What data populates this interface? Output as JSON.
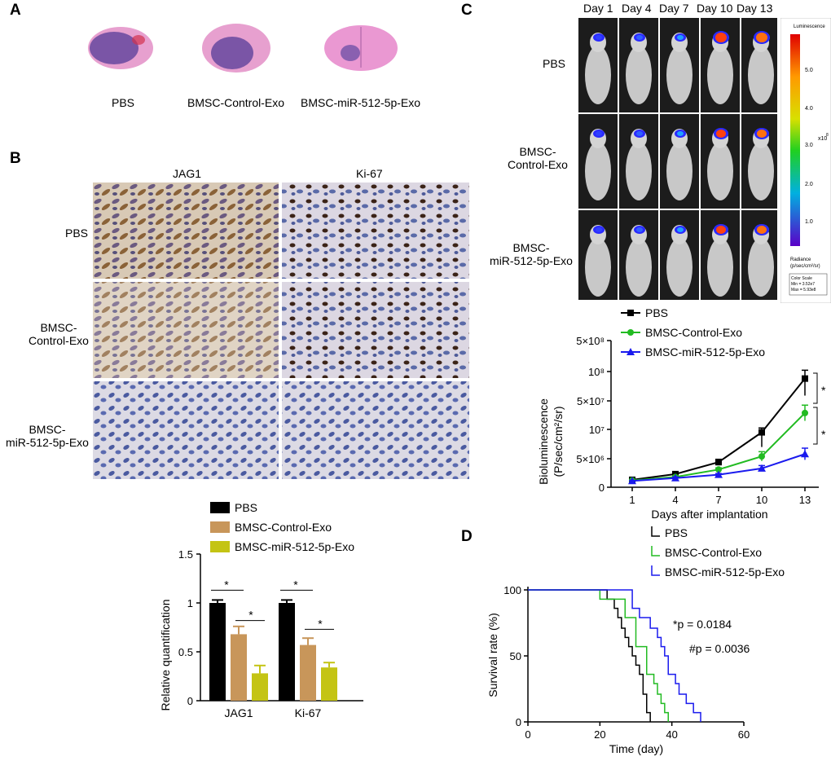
{
  "panelA": {
    "letter": "A",
    "labels": [
      "PBS",
      "BMSC-Control-Exo",
      "BMSC-miR-512-5p-Exo"
    ]
  },
  "panelB": {
    "letter": "B",
    "columns": [
      "JAG1",
      "Ki-67"
    ],
    "rows": [
      "PBS",
      "BMSC-\nControl-Exo",
      "BMSC-\nmiR-512-5p-Exo"
    ],
    "legend": [
      "PBS",
      "BMSC-Control-Exo",
      "BMSC-miR-512-5p-Exo"
    ],
    "ylabel": "Relative quantification",
    "yticks": [
      "0",
      "0.5",
      "1",
      "1.5"
    ],
    "categories": [
      "JAG1",
      "Ki-67"
    ],
    "star": "*"
  },
  "panelC": {
    "letter": "C",
    "days": [
      "Day 1",
      "Day 4",
      "Day 7",
      "Day 10",
      "Day 13"
    ],
    "rows": [
      "PBS",
      "BMSC-\nControl-Exo",
      "BMSC-\nmiR-512-5p-Exo"
    ],
    "scale": {
      "title": "Luminescence",
      "ticks": [
        "5.0",
        "4.0",
        "3.0",
        "2.0",
        "1.0"
      ],
      "exp": "x10",
      "exp_sup": "8",
      "unit1": "Radiance",
      "unit2": "(p/sec/cm²/sr)",
      "box1": "Color Scale",
      "box2": "Min = 3.52e7",
      "box3": "Max = 5.93e8"
    },
    "legend": [
      "PBS",
      "BMSC-Control-Exo",
      "BMSC-miR-512-5p-Exo"
    ],
    "ylabel1": "Bioluminescence",
    "ylabel2": "(P/sec/cm²/sr)",
    "xlabel": "Days after implantation",
    "xticks": [
      "1",
      "4",
      "7",
      "10",
      "13"
    ],
    "yticks": [
      "0",
      "5×10⁶",
      "10⁷",
      "5×10⁷",
      "10⁸",
      "5×10⁸"
    ],
    "star": "*"
  },
  "panelD": {
    "letter": "D",
    "legend": [
      "PBS",
      "BMSC-Control-Exo",
      "BMSC-miR-512-5p-Exo"
    ],
    "ylabel": "Survival rate (%)",
    "xlabel": "Time (day)",
    "xticks": [
      "0",
      "20",
      "40",
      "60"
    ],
    "yticks": [
      "0",
      "50",
      "100"
    ],
    "p1": "*p = 0.0184",
    "p2": "#p = 0.0036"
  },
  "chart_data": [
    {
      "type": "bar",
      "title": "",
      "categories": [
        "JAG1",
        "Ki-67"
      ],
      "ylabel": "Relative quantification",
      "ylim": [
        0,
        1.5
      ],
      "series": [
        {
          "name": "PBS",
          "values": [
            1.0,
            1.0
          ],
          "errors": [
            0.03,
            0.03
          ],
          "color": "#000000"
        },
        {
          "name": "BMSC-Control-Exo",
          "values": [
            0.68,
            0.57
          ],
          "errors": [
            0.08,
            0.07
          ],
          "color": "#c8965a"
        },
        {
          "name": "BMSC-miR-512-5p-Exo",
          "values": [
            0.28,
            0.34
          ],
          "errors": [
            0.08,
            0.05
          ],
          "color": "#c4c414"
        }
      ]
    },
    {
      "type": "line",
      "title": "",
      "xlabel": "Days after implantation",
      "ylabel": "Bioluminescence (P/sec/cm²/sr)",
      "x": [
        1,
        4,
        7,
        10,
        13
      ],
      "series": [
        {
          "name": "PBS",
          "values": [
            1300000.0,
            2300000.0,
            4400000.0,
            9500000.0,
            88000000.0
          ],
          "color": "#000000",
          "marker": "square"
        },
        {
          "name": "BMSC-Control-Exo",
          "values": [
            1200000.0,
            1800000.0,
            3100000.0,
            5400000.0,
            33000000.0
          ],
          "color": "#22bb22",
          "marker": "circle"
        },
        {
          "name": "BMSC-miR-512-5p-Exo",
          "values": [
            1100000.0,
            1600000.0,
            2200000.0,
            3300000.0,
            5800000.0
          ],
          "color": "#1a1aee",
          "marker": "triangle"
        }
      ]
    },
    {
      "type": "line",
      "title": "",
      "xlabel": "Time (day)",
      "ylabel": "Survival rate (%)",
      "xlim": [
        0,
        60
      ],
      "ylim": [
        0,
        100
      ],
      "series": [
        {
          "name": "PBS",
          "color": "#000000",
          "steps": [
            [
              0,
              100
            ],
            [
              22,
              100
            ],
            [
              22,
              93
            ],
            [
              24,
              93
            ],
            [
              24,
              86
            ],
            [
              25,
              86
            ],
            [
              25,
              79
            ],
            [
              26,
              79
            ],
            [
              26,
              71
            ],
            [
              27,
              71
            ],
            [
              27,
              64
            ],
            [
              28,
              64
            ],
            [
              28,
              57
            ],
            [
              29,
              57
            ],
            [
              29,
              50
            ],
            [
              30,
              50
            ],
            [
              30,
              43
            ],
            [
              31,
              43
            ],
            [
              31,
              36
            ],
            [
              32,
              36
            ],
            [
              32,
              21
            ],
            [
              33,
              21
            ],
            [
              33,
              7
            ],
            [
              34,
              7
            ],
            [
              34,
              0
            ]
          ]
        },
        {
          "name": "BMSC-Control-Exo",
          "color": "#22bb22",
          "steps": [
            [
              0,
              100
            ],
            [
              20,
              100
            ],
            [
              20,
              93
            ],
            [
              27,
              93
            ],
            [
              27,
              79
            ],
            [
              30,
              79
            ],
            [
              30,
              57
            ],
            [
              33,
              57
            ],
            [
              33,
              36
            ],
            [
              35,
              36
            ],
            [
              35,
              29
            ],
            [
              36,
              29
            ],
            [
              36,
              21
            ],
            [
              37,
              21
            ],
            [
              37,
              14
            ],
            [
              38,
              14
            ],
            [
              38,
              7
            ],
            [
              39,
              7
            ],
            [
              39,
              0
            ]
          ]
        },
        {
          "name": "BMSC-miR-512-5p-Exo",
          "color": "#1a1aee",
          "steps": [
            [
              0,
              100
            ],
            [
              20,
              100
            ],
            [
              20,
              100
            ],
            [
              29,
              100
            ],
            [
              29,
              86
            ],
            [
              31,
              86
            ],
            [
              31,
              79
            ],
            [
              34,
              79
            ],
            [
              34,
              71
            ],
            [
              36,
              71
            ],
            [
              36,
              64
            ],
            [
              37,
              64
            ],
            [
              37,
              57
            ],
            [
              38,
              57
            ],
            [
              38,
              50
            ],
            [
              39,
              50
            ],
            [
              39,
              36
            ],
            [
              41,
              36
            ],
            [
              41,
              29
            ],
            [
              42,
              29
            ],
            [
              42,
              21
            ],
            [
              44,
              21
            ],
            [
              44,
              14
            ],
            [
              46,
              14
            ],
            [
              46,
              7
            ],
            [
              48,
              7
            ],
            [
              48,
              0
            ]
          ]
        }
      ]
    }
  ]
}
